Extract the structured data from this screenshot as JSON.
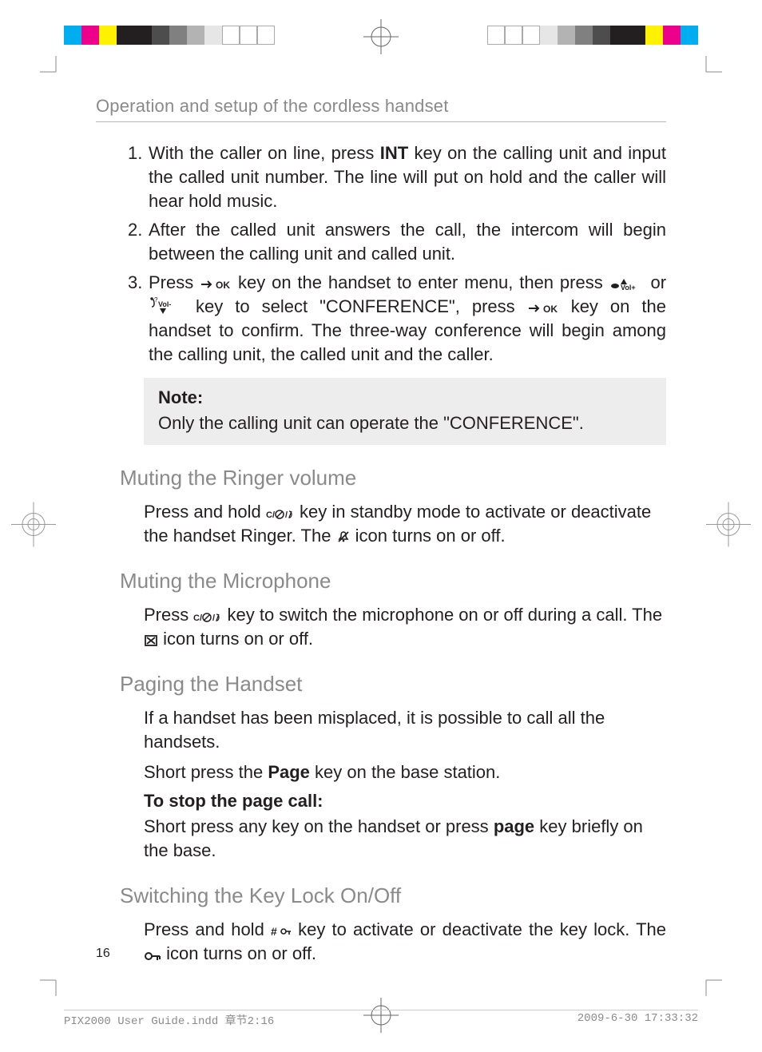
{
  "colors": {
    "text": "#231f20",
    "muted": "#8a8a8a",
    "rule": "#b7b7b7",
    "noteBg": "#ededed",
    "footer": "#8a8a8a"
  },
  "fonts": {
    "body_size_pt": 11,
    "heading_size_pt": 13,
    "running_head_size_pt": 11,
    "footer_family": "monospace"
  },
  "print_marks": {
    "color_bar_left": [
      "#00aeef",
      "#ec008c",
      "#fff200",
      "#231f20",
      "#231f20",
      "#4d4d4d",
      "#808080",
      "#b3b3b3",
      "#e6e6e6",
      "#ffffff",
      "#ffffff",
      "#ffffff"
    ],
    "color_bar_right": [
      "#ffffff",
      "#ffffff",
      "#ffffff",
      "#e6e6e6",
      "#b3b3b3",
      "#808080",
      "#4d4d4d",
      "#231f20",
      "#231f20",
      "#fff200",
      "#ec008c",
      "#00aeef"
    ]
  },
  "running_head": "Operation and setup of the cordless handset",
  "steps": {
    "step1": {
      "num": "1.",
      "pre": "With the caller on line, press ",
      "bold": "INT",
      "post": " key on the calling unit and input the called unit number. The line will put on hold and the caller will hear hold music."
    },
    "step2": {
      "num": "2.",
      "text": "After the called unit answers the call, the intercom will begin between the calling unit and called unit."
    },
    "step3": {
      "num": "3.",
      "t1": "Press ",
      "t2": " key on the handset to enter menu, then press ",
      "t3": " or ",
      "t4": " key to select \"CONFERENCE\", press ",
      "t5": " key on the handset to confirm. The three-way conference will begin among the calling unit, the called unit and the caller."
    }
  },
  "icons": {
    "ok": "OK",
    "vol_plus": "Vol+",
    "vol_minus": "Vol-",
    "cmute": "C/⊗/✕",
    "hash_key": "#⊸",
    "key_lock": "⊸"
  },
  "note": {
    "title": "Note:",
    "body": "Only the calling unit can operate the \"CONFERENCE\"."
  },
  "sections": {
    "ringer": {
      "title": "Muting the Ringer volume",
      "p_a": "Press and hold ",
      "p_b": " key in standby mode to activate or deactivate the handset Ringer. The ",
      "p_c": " icon turns on or off."
    },
    "mic": {
      "title": "Muting the Microphone",
      "p_a": "Press ",
      "p_b": " key to switch the microphone on or off during a call. The ",
      "p_c": " icon turns on or off."
    },
    "paging": {
      "title": "Paging the Handset",
      "p1": "If a handset has been misplaced, it is possible to call all the handsets.",
      "p2_a": "Short press the ",
      "p2_bold": "Page",
      "p2_b": " key on the base station.",
      "sub": "To stop the page call:",
      "p3_a": "Short press any key on the handset or press ",
      "p3_bold": "page",
      "p3_b": " key briefly on the base."
    },
    "keylock": {
      "title": "Switching the Key Lock On/Off",
      "p_a": "Press and hold ",
      "p_b": " key to activate or deactivate the key lock. The ",
      "p_c": " icon turns on or off."
    }
  },
  "page_number": "16",
  "footer": {
    "left": "PIX2000 User Guide.indd   章节2:16",
    "right": "2009-6-30   17:33:32"
  }
}
